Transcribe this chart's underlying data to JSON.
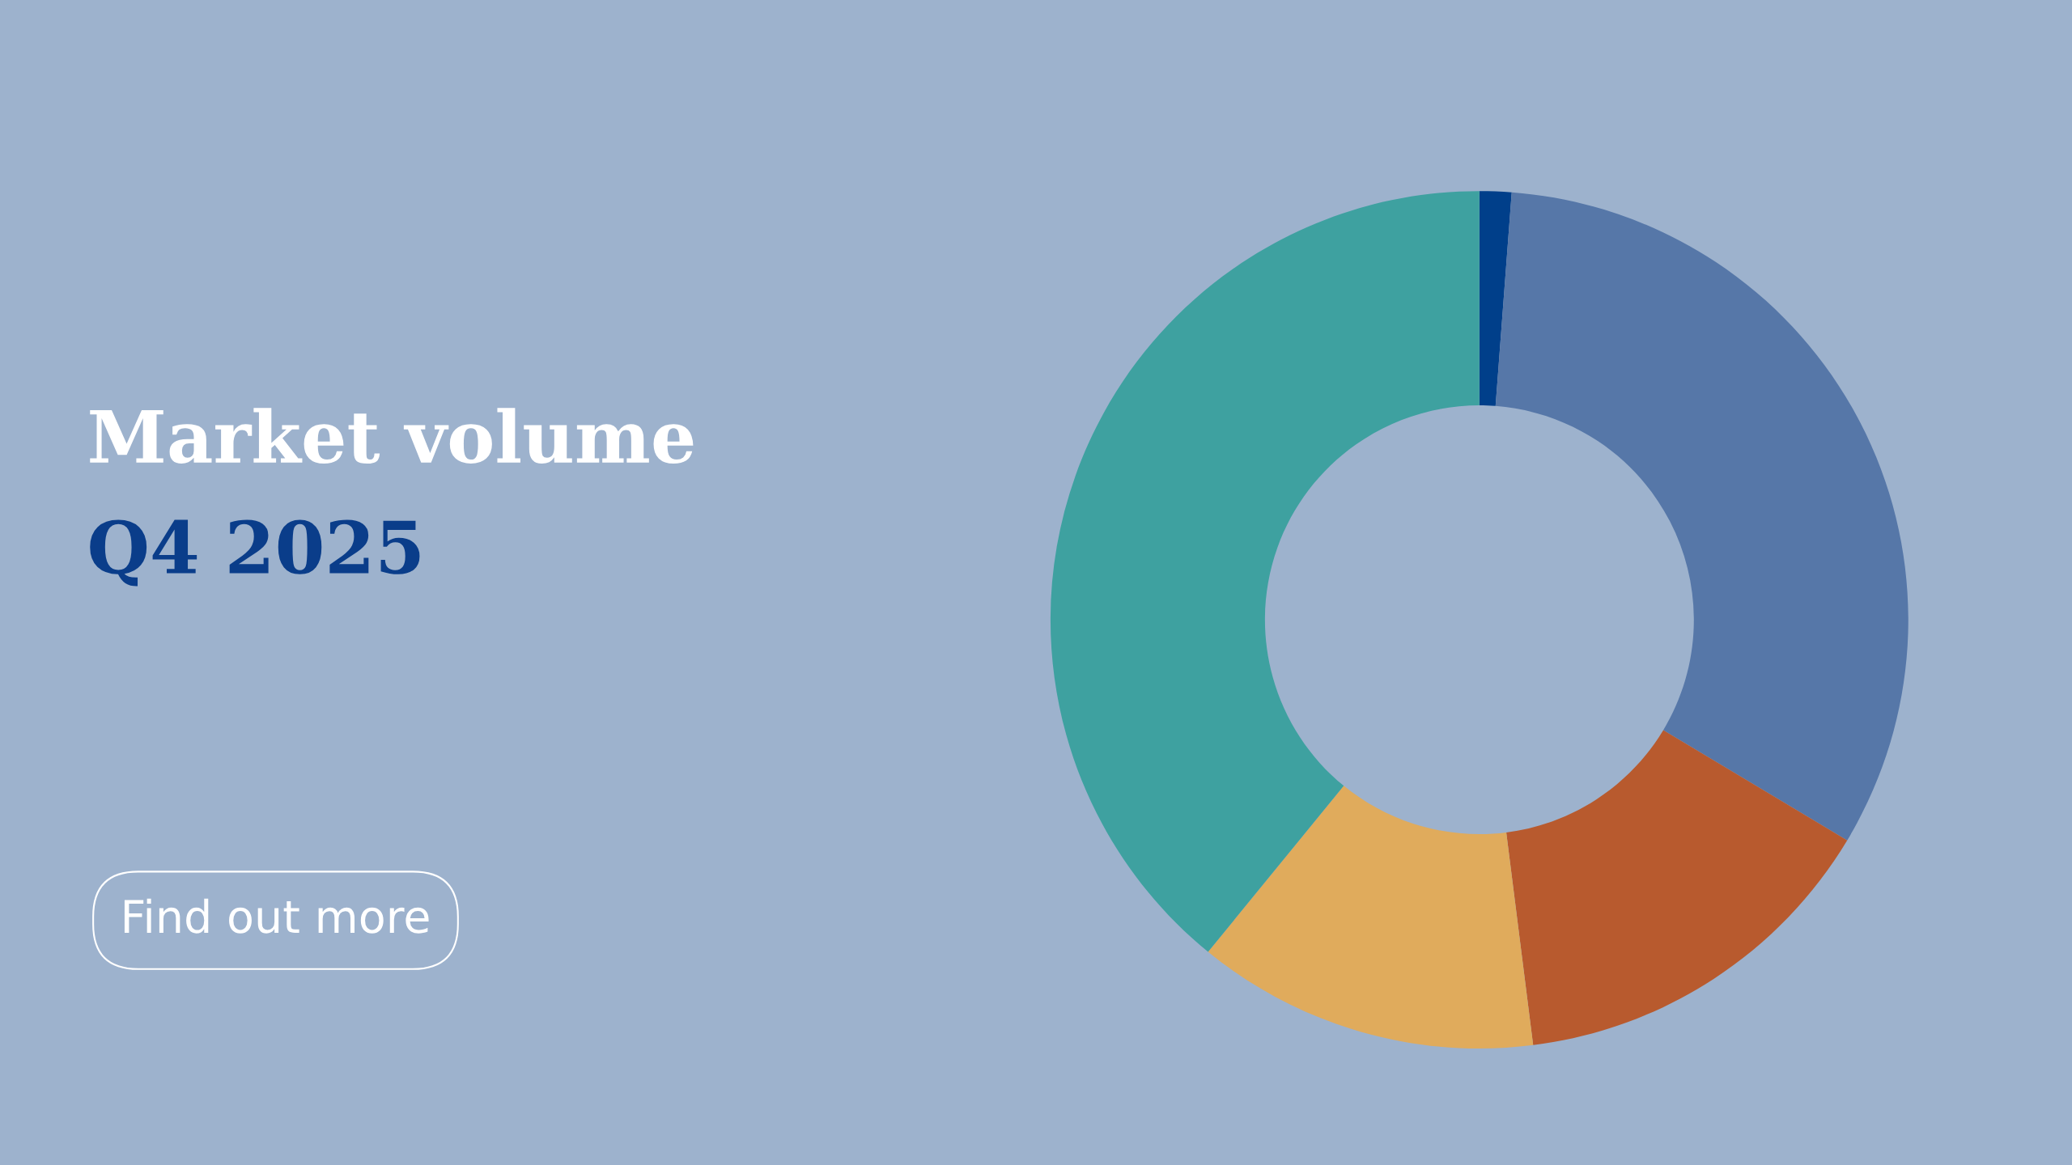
{
  "chart_data": {
    "type": "donut",
    "title": "Market volume",
    "subtitle": "Q4 2025",
    "categories": [
      null,
      null,
      null,
      null,
      null
    ],
    "values": [
      1.2,
      32.4,
      14.4,
      12.9,
      39.1
    ],
    "colors": [
      "#003f8a",
      "#5677a8",
      "#b85a2e",
      "#e0ab5c",
      "#3ea1a0"
    ],
    "annotations": [
      "Find out more"
    ]
  }
}
